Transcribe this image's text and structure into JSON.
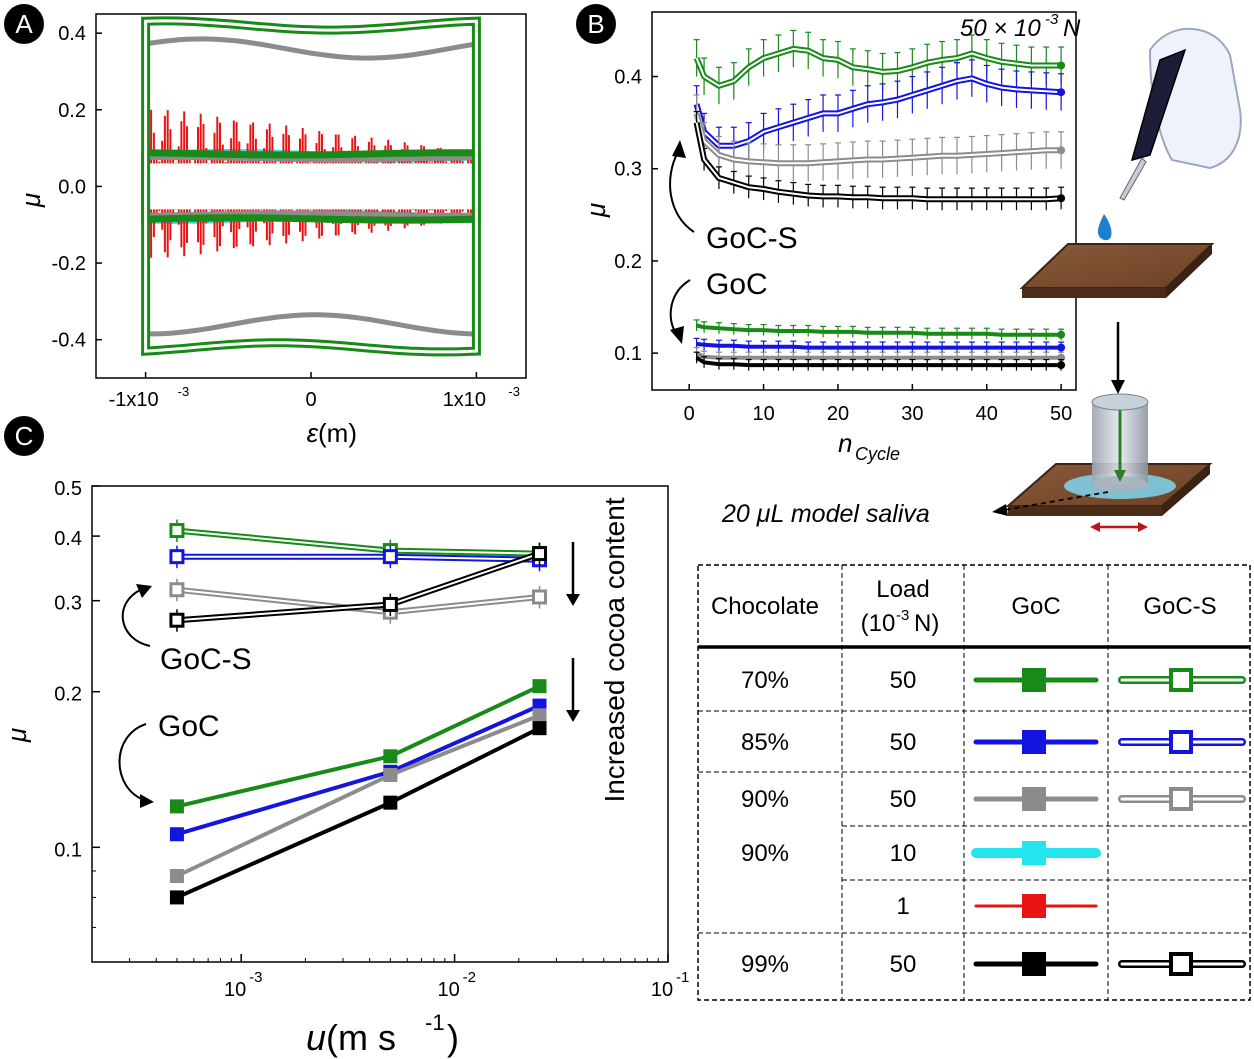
{
  "panels": {
    "A": {
      "letter": "A",
      "xlabel_sym": "ε",
      "xlabel_unit": " (m)",
      "ylabel": "μ",
      "xticks": [
        "-1x10",
        "0",
        "1x10"
      ],
      "xtick_exp": "-3",
      "yticks": [
        "0.4",
        "0.2",
        "0.0",
        "-0.2",
        "-0.4"
      ]
    },
    "B": {
      "letter": "B",
      "load_prefix": "50 × 10",
      "load_exp": "-3",
      "load_unit": " N",
      "ylabel": "μ",
      "xlabel_main": "n",
      "xlabel_sub": "Cycle",
      "xticks": [
        "0",
        "10",
        "20",
        "30",
        "40",
        "50"
      ],
      "yticks": [
        "0.4",
        "0.3",
        "0.2",
        "0.1"
      ],
      "label_gocs": "GoC-S",
      "label_goc": "GoC",
      "saliva": "20 μL model saliva"
    },
    "C": {
      "letter": "C",
      "ylabel": "μ",
      "xlabel_main": "u",
      "xlabel_unit": " (m s",
      "xlabel_exp": "-1",
      "xlabel_close": ")",
      "yticks": [
        "0.5",
        "0.4",
        "0.3",
        "0.2",
        "0.1"
      ],
      "xtick_base": "10",
      "xtick_exps": [
        "-3",
        "-2",
        "-1"
      ],
      "label_gocs": "GoC-S",
      "label_goc": "GoC",
      "cocoa": "Increased cocoa content"
    }
  },
  "legend_table": {
    "headers": {
      "chocolate": "Chocolate",
      "load": "Load",
      "load_unit_a": "(10",
      "load_exp": "-3",
      "load_unit_b": " N)",
      "goc": "GoC",
      "gocs": "GoC-S"
    },
    "rows": [
      {
        "chocolate": "70%",
        "load": "50",
        "color": "#178a17",
        "goc": true,
        "gocs": true
      },
      {
        "chocolate": "85%",
        "load": "50",
        "color": "#1414e0",
        "goc": true,
        "gocs": true
      },
      {
        "chocolate": "90%",
        "load": "50",
        "color": "#8c8c8c",
        "goc": true,
        "gocs": true
      },
      {
        "chocolate": "",
        "load": "10",
        "color": "#22e5ee",
        "goc": true,
        "gocs": false
      },
      {
        "chocolate": "",
        "load": "1",
        "color": "#e81414",
        "goc": true,
        "gocs": false
      },
      {
        "chocolate": "99%",
        "load": "50",
        "color": "#000000",
        "goc": true,
        "gocs": true
      }
    ],
    "merged_chocolate_90": "90%"
  },
  "colors": {
    "c70": "#178a17",
    "c85": "#1414e0",
    "c90": "#8c8c8c",
    "c90_10": "#22e5ee",
    "c90_1": "#e81414",
    "c99": "#000000"
  },
  "chart_data": [
    {
      "type": "line",
      "panel": "A",
      "xlabel": "ε (m)",
      "ylabel": "μ",
      "xlim": [
        -0.0013,
        0.0013
      ],
      "ylim": [
        -0.5,
        0.45
      ],
      "series": [
        {
          "loop_amp": 0.42,
          "color": "#178a17"
        },
        {
          "loop_amp": 0.36,
          "color": "#8c8c8c"
        },
        {
          "loop_amp": 0.085,
          "color": "#178a17"
        },
        {
          "loop_amp": 0.075,
          "color": "#8c8c8c"
        },
        {
          "loop_amp": 0.08,
          "color": "#22e5ee"
        },
        {
          "loop_amp": 0.1,
          "color": "#e81414"
        }
      ]
    },
    {
      "type": "line",
      "panel": "B",
      "xlabel": "nCycle",
      "ylabel": "μ",
      "xlim": [
        -5,
        52
      ],
      "ylim": [
        0.06,
        0.47
      ],
      "x": [
        1,
        2,
        4,
        6,
        8,
        10,
        12,
        14,
        16,
        18,
        20,
        22,
        24,
        26,
        28,
        30,
        32,
        34,
        36,
        38,
        40,
        42,
        44,
        46,
        48,
        50
      ],
      "series": [
        {
          "condition": "GoC-S",
          "color": "#178a17",
          "open": true,
          "values": [
            0.42,
            0.4,
            0.39,
            0.395,
            0.41,
            0.42,
            0.425,
            0.43,
            0.428,
            0.42,
            0.418,
            0.41,
            0.408,
            0.405,
            0.406,
            0.41,
            0.415,
            0.418,
            0.42,
            0.425,
            0.42,
            0.416,
            0.414,
            0.412,
            0.412,
            0.412
          ]
        },
        {
          "condition": "GoC-S",
          "color": "#1414e0",
          "open": true,
          "values": [
            0.37,
            0.34,
            0.325,
            0.325,
            0.33,
            0.34,
            0.345,
            0.35,
            0.355,
            0.36,
            0.36,
            0.365,
            0.37,
            0.372,
            0.375,
            0.38,
            0.385,
            0.39,
            0.395,
            0.398,
            0.392,
            0.388,
            0.386,
            0.385,
            0.384,
            0.383
          ]
        },
        {
          "condition": "GoC-S",
          "color": "#8c8c8c",
          "open": true,
          "values": [
            0.36,
            0.33,
            0.315,
            0.31,
            0.308,
            0.307,
            0.306,
            0.306,
            0.306,
            0.307,
            0.308,
            0.309,
            0.31,
            0.31,
            0.311,
            0.312,
            0.313,
            0.314,
            0.314,
            0.315,
            0.316,
            0.317,
            0.318,
            0.319,
            0.32,
            0.32
          ]
        },
        {
          "condition": "GoC-S",
          "color": "#000000",
          "open": true,
          "values": [
            0.35,
            0.31,
            0.29,
            0.285,
            0.28,
            0.278,
            0.275,
            0.273,
            0.271,
            0.27,
            0.27,
            0.269,
            0.269,
            0.268,
            0.268,
            0.268,
            0.267,
            0.267,
            0.267,
            0.267,
            0.267,
            0.267,
            0.267,
            0.267,
            0.267,
            0.268
          ]
        },
        {
          "condition": "GoC",
          "color": "#178a17",
          "open": false,
          "values": [
            0.13,
            0.128,
            0.127,
            0.126,
            0.125,
            0.125,
            0.124,
            0.124,
            0.124,
            0.123,
            0.123,
            0.123,
            0.122,
            0.122,
            0.122,
            0.122,
            0.121,
            0.121,
            0.121,
            0.121,
            0.121,
            0.12,
            0.12,
            0.12,
            0.12,
            0.12
          ]
        },
        {
          "condition": "GoC",
          "color": "#1414e0",
          "open": false,
          "values": [
            0.11,
            0.109,
            0.108,
            0.108,
            0.107,
            0.107,
            0.107,
            0.107,
            0.106,
            0.106,
            0.106,
            0.106,
            0.106,
            0.106,
            0.106,
            0.106,
            0.106,
            0.106,
            0.106,
            0.106,
            0.106,
            0.106,
            0.106,
            0.106,
            0.106,
            0.106
          ]
        },
        {
          "condition": "GoC",
          "color": "#8c8c8c",
          "open": false,
          "values": [
            0.1,
            0.096,
            0.095,
            0.095,
            0.095,
            0.095,
            0.095,
            0.095,
            0.095,
            0.095,
            0.095,
            0.095,
            0.095,
            0.095,
            0.095,
            0.095,
            0.095,
            0.095,
            0.095,
            0.095,
            0.095,
            0.095,
            0.095,
            0.095,
            0.095,
            0.095
          ]
        },
        {
          "condition": "GoC",
          "color": "#000000",
          "open": false,
          "values": [
            0.095,
            0.09,
            0.088,
            0.088,
            0.087,
            0.087,
            0.087,
            0.087,
            0.087,
            0.087,
            0.087,
            0.087,
            0.087,
            0.087,
            0.087,
            0.087,
            0.087,
            0.087,
            0.087,
            0.087,
            0.087,
            0.087,
            0.087,
            0.087,
            0.087,
            0.087
          ]
        }
      ]
    },
    {
      "type": "line",
      "panel": "C",
      "xlabel": "u (m s-1)",
      "ylabel": "μ",
      "xscale": "log",
      "yscale": "log",
      "xlim": [
        0.0002,
        0.1
      ],
      "ylim": [
        0.06,
        0.5
      ],
      "x": [
        0.0005,
        0.005,
        0.025
      ],
      "series": [
        {
          "condition": "GoC-S",
          "color": "#178a17",
          "open": true,
          "values": [
            0.41,
            0.375,
            0.37
          ]
        },
        {
          "condition": "GoC-S",
          "color": "#1414e0",
          "open": true,
          "values": [
            0.365,
            0.365,
            0.36
          ]
        },
        {
          "condition": "GoC-S",
          "color": "#8c8c8c",
          "open": true,
          "values": [
            0.315,
            0.285,
            0.305
          ]
        },
        {
          "condition": "GoC-S",
          "color": "#000000",
          "open": true,
          "values": [
            0.275,
            0.295,
            0.37
          ]
        },
        {
          "condition": "GoC",
          "color": "#178a17",
          "open": false,
          "values": [
            0.12,
            0.15,
            0.205
          ]
        },
        {
          "condition": "GoC",
          "color": "#1414e0",
          "open": false,
          "values": [
            0.106,
            0.14,
            0.188
          ]
        },
        {
          "condition": "GoC",
          "color": "#8c8c8c",
          "open": false,
          "values": [
            0.088,
            0.138,
            0.18
          ]
        },
        {
          "condition": "GoC",
          "color": "#000000",
          "open": false,
          "values": [
            0.08,
            0.122,
            0.17
          ]
        }
      ]
    }
  ]
}
